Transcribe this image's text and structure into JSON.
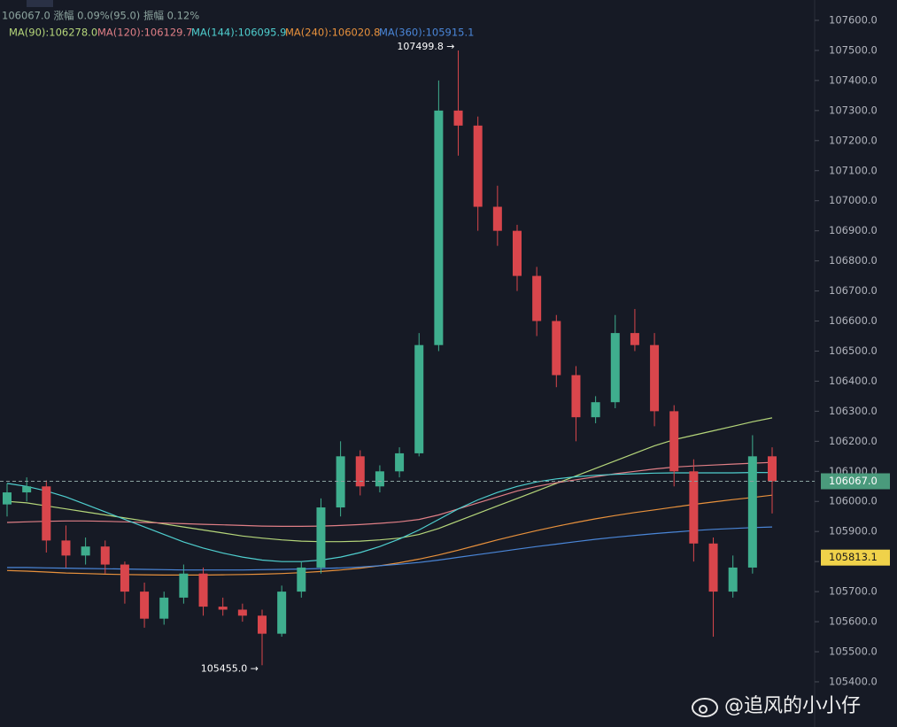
{
  "chart_data": {
    "type": "candlestick",
    "header": "106067.0 涨幅 0.09%(95.0) 振幅 0.12%",
    "up_color": "#3fae8e",
    "down_color": "#d9464c",
    "open": [
      105990,
      106030,
      106050,
      105870,
      105820,
      105850,
      105790,
      105700,
      105610,
      105680,
      105760,
      105650,
      105640,
      105620,
      105560,
      105700,
      105780,
      105980,
      106150,
      106050,
      106100,
      106160,
      106520,
      107300,
      107250,
      106980,
      106900,
      106750,
      106600,
      106420,
      106280,
      106330,
      106560,
      106520,
      106300,
      106100,
      105860,
      105700,
      105780,
      106150
    ],
    "high": [
      106060,
      106080,
      106070,
      105920,
      105880,
      105870,
      105800,
      105730,
      105700,
      105790,
      105780,
      105680,
      105660,
      105640,
      105720,
      105800,
      106010,
      106200,
      106170,
      106120,
      106180,
      106560,
      107400,
      107499.8,
      107280,
      107050,
      106920,
      106780,
      106620,
      106450,
      106350,
      106620,
      106640,
      106560,
      106320,
      106140,
      105880,
      105820,
      106220,
      106180
    ],
    "low": [
      105950,
      106000,
      105830,
      105780,
      105790,
      105760,
      105660,
      105580,
      105590,
      105660,
      105620,
      105620,
      105600,
      105455,
      105550,
      105680,
      105760,
      105950,
      106020,
      106030,
      106080,
      106150,
      106500,
      107150,
      106900,
      106850,
      106700,
      106550,
      106380,
      106200,
      106260,
      106310,
      106500,
      106250,
      106050,
      105800,
      105550,
      105680,
      105760,
      105960
    ],
    "close": [
      106030,
      106050,
      105870,
      105820,
      105850,
      105790,
      105700,
      105610,
      105680,
      105760,
      105650,
      105640,
      105620,
      105560,
      105700,
      105780,
      105980,
      106150,
      106050,
      106100,
      106160,
      106520,
      107300,
      107250,
      106980,
      106900,
      106750,
      106600,
      106420,
      106280,
      106330,
      106560,
      106520,
      106300,
      106100,
      105860,
      105700,
      105780,
      106150,
      106067
    ],
    "series": [
      {
        "name": "MA(90):106278.0",
        "color": "#b5d67a",
        "values": [
          106000,
          105995,
          105985,
          105975,
          105965,
          105955,
          105945,
          105935,
          105925,
          105915,
          105905,
          105895,
          105885,
          105878,
          105872,
          105868,
          105866,
          105866,
          105868,
          105872,
          105878,
          105890,
          105910,
          105935,
          105960,
          105985,
          106010,
          106035,
          106060,
          106085,
          106110,
          106135,
          106160,
          106185,
          106205,
          106220,
          106235,
          106250,
          106265,
          106278
        ]
      },
      {
        "name": "MA(120):106129.7",
        "color": "#e07f86",
        "values": [
          105930,
          105932,
          105934,
          105935,
          105935,
          105934,
          105932,
          105930,
          105928,
          105926,
          105924,
          105922,
          105920,
          105918,
          105917,
          105917,
          105918,
          105920,
          105923,
          105927,
          105932,
          105940,
          105955,
          105975,
          105995,
          106015,
          106035,
          106050,
          106062,
          106072,
          106082,
          106092,
          106100,
          106108,
          106114,
          106118,
          106121,
          106124,
          106127,
          106129.7
        ]
      },
      {
        "name": "MA(144):106095.9",
        "color": "#4fcfcf",
        "values": [
          106060,
          106050,
          106035,
          106015,
          105990,
          105965,
          105940,
          105915,
          105890,
          105865,
          105845,
          105828,
          105815,
          105805,
          105800,
          105800,
          105805,
          105815,
          105830,
          105850,
          105875,
          105905,
          105940,
          105975,
          106005,
          106030,
          106050,
          106065,
          106075,
          106082,
          106087,
          106090,
          106092,
          106094,
          106095,
          106095,
          106095,
          106095,
          106096,
          106095.9
        ]
      },
      {
        "name": "MA(240):106020.8",
        "color": "#e8913c",
        "values": [
          105770,
          105768,
          105765,
          105762,
          105760,
          105758,
          105757,
          105756,
          105755,
          105755,
          105755,
          105756,
          105757,
          105758,
          105760,
          105763,
          105767,
          105772,
          105778,
          105786,
          105796,
          105808,
          105822,
          105838,
          105855,
          105872,
          105888,
          105903,
          105917,
          105930,
          105942,
          105953,
          105963,
          105972,
          105981,
          105990,
          105998,
          106006,
          106013,
          106020.8
        ]
      },
      {
        "name": "MA(360):105915.1",
        "color": "#4a86d8",
        "values": [
          105780,
          105780,
          105779,
          105778,
          105777,
          105776,
          105775,
          105774,
          105773,
          105772,
          105772,
          105772,
          105772,
          105773,
          105774,
          105775,
          105777,
          105779,
          105782,
          105786,
          105791,
          105797,
          105805,
          105814,
          105823,
          105832,
          105841,
          105850,
          105858,
          105866,
          105874,
          105881,
          105887,
          105893,
          105898,
          105903,
          105907,
          105910,
          105913,
          105915.1
        ]
      }
    ],
    "ylim": [
      105249.7,
      107667.7
    ],
    "yticks": [
      {
        "value": 105400,
        "label": "105400.0"
      },
      {
        "value": 105500,
        "label": "105500.0"
      },
      {
        "value": 105600,
        "label": "105600.0"
      },
      {
        "value": 105700,
        "label": "105700.0"
      },
      {
        "value": 105800,
        "label": "105800.0"
      },
      {
        "value": 105900,
        "label": "105900.0"
      },
      {
        "value": 106000,
        "label": "106000.0"
      },
      {
        "value": 106100,
        "label": "106100.0"
      },
      {
        "value": 106200,
        "label": "106200.0"
      },
      {
        "value": 106300,
        "label": "106300.0"
      },
      {
        "value": 106400,
        "label": "106400.0"
      },
      {
        "value": 106500,
        "label": "106500.0"
      },
      {
        "value": 106600,
        "label": "106600.0"
      },
      {
        "value": 106700,
        "label": "106700.0"
      },
      {
        "value": 106800,
        "label": "106800.0"
      },
      {
        "value": 106900,
        "label": "106900.0"
      },
      {
        "value": 107000,
        "label": "107000.0"
      },
      {
        "value": 107100,
        "label": "107100.0"
      },
      {
        "value": 107200,
        "label": "107200.0"
      },
      {
        "value": 107300,
        "label": "107300.0"
      },
      {
        "value": 107400,
        "label": "107400.0"
      },
      {
        "value": 107500,
        "label": "107500.0"
      },
      {
        "value": 107600,
        "label": "107600.0"
      }
    ],
    "price_tags": [
      {
        "value": 106067,
        "label": "106067.0",
        "color": "#4a9a7c",
        "dashed": true
      },
      {
        "value": 105813.1,
        "label": "105813.1",
        "color": "#f0d24a",
        "dashed": false
      }
    ],
    "annotations": [
      {
        "text": "107499.8 →",
        "candle": 23,
        "at": "high"
      },
      {
        "text": "105455.0 →",
        "candle": 13,
        "at": "low"
      }
    ],
    "watermark": "@追风的小小仔"
  }
}
